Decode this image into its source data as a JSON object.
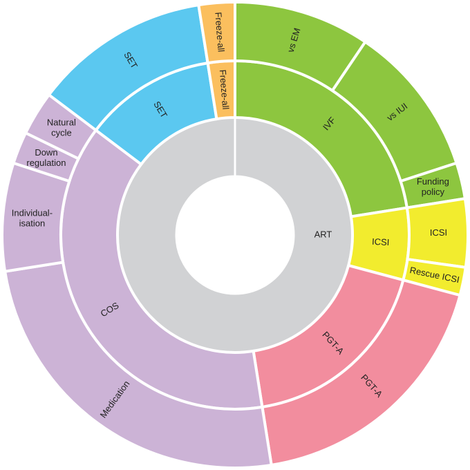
{
  "chart_data": {
    "type": "sunburst",
    "root": {
      "name": "ART",
      "value": 360,
      "color": "#d1d2d4"
    },
    "children": [
      {
        "name": "IVF",
        "value": 81,
        "color": "#8dc63f",
        "children": [
          {
            "name": "vs EM",
            "value": 34
          },
          {
            "name": "vs IUI",
            "value": 38
          },
          {
            "name": "Funding\npolicy",
            "value": 9
          }
        ]
      },
      {
        "name": "ICSI",
        "value": 24,
        "color": "#f2ec2e",
        "children": [
          {
            "name": "ICSI",
            "value": 17
          },
          {
            "name": "Rescue ICSI",
            "value": 7
          }
        ]
      },
      {
        "name": "PGT-A",
        "value": 66,
        "color": "#f28d9e",
        "children": [
          {
            "name": "PGT-A",
            "value": 66
          }
        ]
      },
      {
        "name": "COS",
        "value": 136,
        "color": "#ccb3d6",
        "children": [
          {
            "name": "Medication",
            "value": 90
          },
          {
            "name": "Individual-\nisation",
            "value": 27
          },
          {
            "name": "Down\nregulation",
            "value": 8
          },
          {
            "name": "Natural\ncycle",
            "value": 11
          }
        ]
      },
      {
        "name": "SET",
        "value": 44,
        "color": "#5bc8f0",
        "children": [
          {
            "name": "SET",
            "value": 44
          }
        ]
      },
      {
        "name": "Freeze-all",
        "value": 9,
        "color": "#fbbf5e",
        "children": [
          {
            "name": "Freeze-all",
            "value": 9
          }
        ]
      }
    ]
  }
}
